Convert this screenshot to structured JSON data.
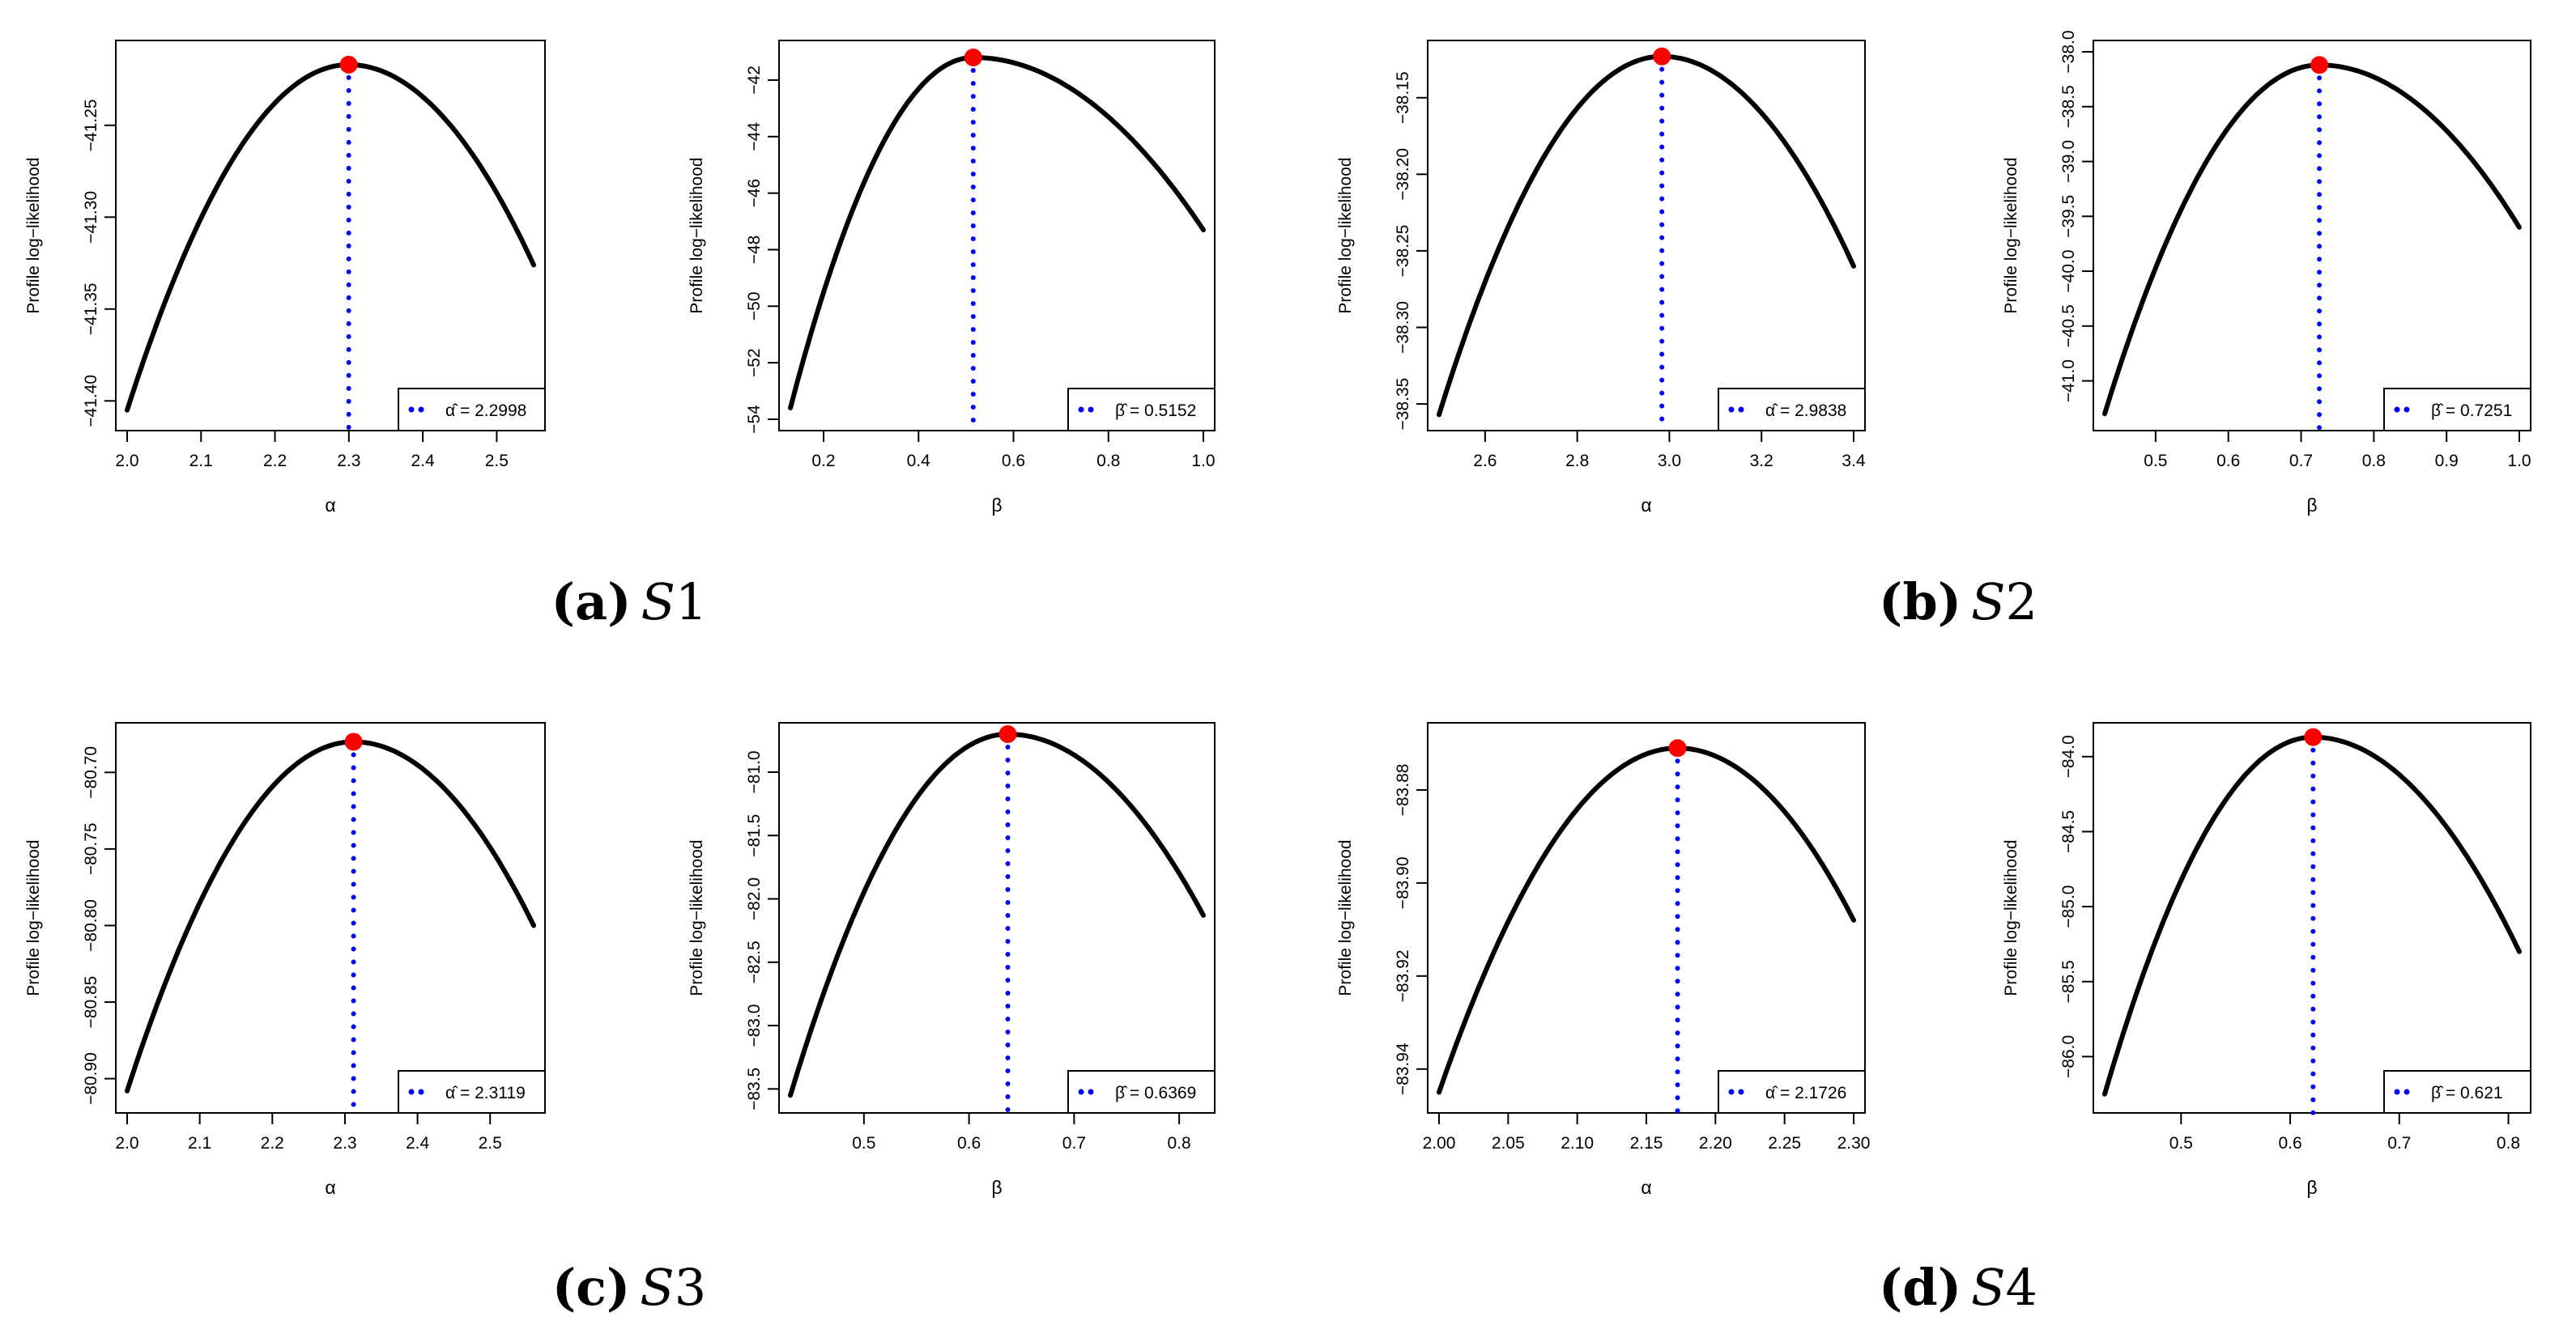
{
  "figure": {
    "panels": [
      {
        "letter": "(a)",
        "script": "S",
        "num": "1"
      },
      {
        "letter": "(b)",
        "script": "S",
        "num": "2"
      },
      {
        "letter": "(c)",
        "script": "S",
        "num": "3"
      },
      {
        "letter": "(d)",
        "script": "S",
        "num": "4"
      }
    ]
  },
  "colors": {
    "curve": "#000000",
    "mle_point": "#ff0000",
    "mle_line": "#0000ff",
    "axis": "#000000"
  },
  "chart_data": [
    {
      "type": "line",
      "panel": "(a) S1",
      "param": "α",
      "xlabel": "α",
      "ylabel": "Profile log−likelihood",
      "xlim": [
        2.0,
        2.55
      ],
      "xticks": [
        2.0,
        2.1,
        2.2,
        2.3,
        2.4,
        2.5
      ],
      "xtick_labels": [
        "2.0",
        "2.1",
        "2.2",
        "2.3",
        "2.4",
        "2.5"
      ],
      "ylim": [
        -41.41,
        -41.21
      ],
      "yticks": [
        -41.4,
        -41.35,
        -41.3,
        -41.25
      ],
      "ytick_labels": [
        "−41.40",
        "−41.35",
        "−41.30",
        "−41.25"
      ],
      "curve_x": [
        2.0,
        2.55
      ],
      "curve_y": [
        -41.405,
        -41.326
      ],
      "mle": 2.2998,
      "mle_y": -41.217,
      "legend_text": "α̂ = 2.2998"
    },
    {
      "type": "line",
      "panel": "(a) S1",
      "param": "β",
      "xlabel": "β",
      "ylabel": "Profile log−likelihood",
      "xlim": [
        0.13,
        1.0
      ],
      "xticks": [
        0.2,
        0.4,
        0.6,
        0.8,
        1.0
      ],
      "xtick_labels": [
        "0.2",
        "0.4",
        "0.6",
        "0.8",
        "1.0"
      ],
      "ylim": [
        -54.0,
        -41.0
      ],
      "yticks": [
        -54,
        -52,
        -50,
        -48,
        -46,
        -44,
        -42
      ],
      "ytick_labels": [
        "−54",
        "−52",
        "−50",
        "−48",
        "−46",
        "−44",
        "−42"
      ],
      "curve_x": [
        0.13,
        1.0
      ],
      "curve_y": [
        -53.6,
        -47.3
      ],
      "mle": 0.5152,
      "mle_y": -41.2,
      "legend_text": "β̂ = 0.5152"
    },
    {
      "type": "line",
      "panel": "(b) S2",
      "param": "α",
      "xlabel": "α",
      "ylabel": "Profile log−likelihood",
      "xlim": [
        2.5,
        3.4
      ],
      "xticks": [
        2.6,
        2.8,
        3.0,
        3.2,
        3.4
      ],
      "xtick_labels": [
        "2.6",
        "2.8",
        "3.0",
        "3.2",
        "3.4"
      ],
      "ylim": [
        -38.36,
        -38.12
      ],
      "yticks": [
        -38.35,
        -38.3,
        -38.25,
        -38.2,
        -38.15
      ],
      "ytick_labels": [
        "−38.35",
        "−38.30",
        "−38.25",
        "−38.20",
        "−38.15"
      ],
      "curve_x": [
        2.5,
        3.4
      ],
      "curve_y": [
        -38.357,
        -38.26
      ],
      "mle": 2.9838,
      "mle_y": -38.123,
      "legend_text": "α̂ = 2.9838"
    },
    {
      "type": "line",
      "panel": "(b) S2",
      "param": "β",
      "xlabel": "β",
      "ylabel": "Profile log−likelihood",
      "xlim": [
        0.43,
        1.0
      ],
      "xticks": [
        0.5,
        0.6,
        0.7,
        0.8,
        0.9,
        1.0
      ],
      "xtick_labels": [
        "0.5",
        "0.6",
        "0.7",
        "0.8",
        "0.9",
        "1.0"
      ],
      "ylim": [
        -41.35,
        -38.0
      ],
      "yticks": [
        -41.0,
        -40.5,
        -40.0,
        -39.5,
        -39.0,
        -38.5,
        -38.0
      ],
      "ytick_labels": [
        "−41.0",
        "−40.5",
        "−40.0",
        "−39.5",
        "−39.0",
        "−38.5",
        "−38.0"
      ],
      "curve_x": [
        0.43,
        1.0
      ],
      "curve_y": [
        -41.3,
        -39.6
      ],
      "mle": 0.7251,
      "mle_y": -38.12,
      "legend_text": "β̂ = 0.7251"
    },
    {
      "type": "line",
      "panel": "(c) S3",
      "param": "α",
      "xlabel": "α",
      "ylabel": "Profile log−likelihood",
      "xlim": [
        2.0,
        2.56
      ],
      "xticks": [
        2.0,
        2.1,
        2.2,
        2.3,
        2.4,
        2.5
      ],
      "xtick_labels": [
        "2.0",
        "2.1",
        "2.2",
        "2.3",
        "2.4",
        "2.5"
      ],
      "ylim": [
        -80.915,
        -80.675
      ],
      "yticks": [
        -80.9,
        -80.85,
        -80.8,
        -80.75,
        -80.7
      ],
      "ytick_labels": [
        "−80.90",
        "−80.85",
        "−80.80",
        "−80.75",
        "−80.70"
      ],
      "curve_x": [
        2.0,
        2.56
      ],
      "curve_y": [
        -80.908,
        -80.8
      ],
      "mle": 2.3119,
      "mle_y": -80.68,
      "legend_text": "α̂ = 2.3119"
    },
    {
      "type": "line",
      "panel": "(c) S3",
      "param": "β",
      "xlabel": "β",
      "ylabel": "Profile log−likelihood",
      "xlim": [
        0.43,
        0.823
      ],
      "xticks": [
        0.5,
        0.6,
        0.7,
        0.8
      ],
      "xtick_labels": [
        "0.5",
        "0.6",
        "0.7",
        "0.8"
      ],
      "ylim": [
        -83.6,
        -80.7
      ],
      "yticks": [
        -83.5,
        -83.0,
        -82.5,
        -82.0,
        -81.5,
        -81.0
      ],
      "ytick_labels": [
        "−83.5",
        "−83.0",
        "−82.5",
        "−82.0",
        "−81.5",
        "−81.0"
      ],
      "curve_x": [
        0.43,
        0.823
      ],
      "curve_y": [
        -83.55,
        -82.13
      ],
      "mle": 0.6369,
      "mle_y": -80.7,
      "legend_text": "β̂ = 0.6369"
    },
    {
      "type": "line",
      "panel": "(d) S4",
      "param": "α",
      "xlabel": "α",
      "ylabel": "Profile log−likelihood",
      "xlim": [
        2.0,
        2.3
      ],
      "xticks": [
        2.0,
        2.05,
        2.1,
        2.15,
        2.2,
        2.25,
        2.3
      ],
      "xtick_labels": [
        "2.00",
        "2.05",
        "2.10",
        "2.15",
        "2.20",
        "2.25",
        "2.30"
      ],
      "ylim": [
        -83.947,
        -83.868
      ],
      "yticks": [
        -83.94,
        -83.92,
        -83.9,
        -83.88
      ],
      "ytick_labels": [
        "−83.94",
        "−83.92",
        "−83.90",
        "−83.88"
      ],
      "curve_x": [
        2.0,
        2.3
      ],
      "curve_y": [
        -83.945,
        -83.908
      ],
      "mle": 2.1726,
      "mle_y": -83.871,
      "legend_text": "α̂ = 2.1726"
    },
    {
      "type": "line",
      "panel": "(d) S4",
      "param": "β",
      "xlabel": "β",
      "ylabel": "Profile log−likelihood",
      "xlim": [
        0.43,
        0.81
      ],
      "xticks": [
        0.5,
        0.6,
        0.7,
        0.8
      ],
      "xtick_labels": [
        "0.5",
        "0.6",
        "0.7",
        "0.8"
      ],
      "ylim": [
        -86.3,
        -83.85
      ],
      "yticks": [
        -86.0,
        -85.5,
        -85.0,
        -84.5,
        -84.0
      ],
      "ytick_labels": [
        "−86.0",
        "−85.5",
        "−85.0",
        "−84.5",
        "−84.0"
      ],
      "curve_x": [
        0.43,
        0.81
      ],
      "curve_y": [
        -86.25,
        -85.3
      ],
      "mle": 0.621,
      "mle_y": -83.87,
      "legend_text": "β̂ = 0.621"
    }
  ]
}
